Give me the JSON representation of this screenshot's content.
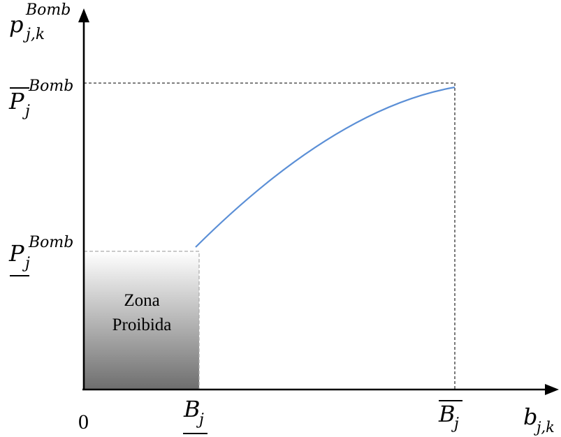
{
  "diagram": {
    "y_axis_label": {
      "base": "p",
      "sub": "j,k",
      "sup": "Bomb"
    },
    "x_axis_label": {
      "base": "b",
      "sub": "j,k"
    },
    "origin_label": "0",
    "y_max_label": {
      "base": "P",
      "sub": "j",
      "sup": "Bomb",
      "decoration": "overline"
    },
    "y_min_label": {
      "base": "P",
      "sub": "j",
      "sup": "Bomb",
      "decoration": "underline"
    },
    "x_min_label": {
      "base": "B",
      "sub": "j",
      "decoration": "underline"
    },
    "x_max_label": {
      "base": "B",
      "sub": "j",
      "decoration": "overline"
    },
    "forbidden_zone": {
      "line1": "Zona",
      "line2": "Proibida"
    },
    "colors": {
      "curve": "#5b8fd6",
      "axes": "#000000",
      "guides": "#333333",
      "zone_top": "#ffffff",
      "zone_bottom": "#6e6e6e"
    }
  }
}
